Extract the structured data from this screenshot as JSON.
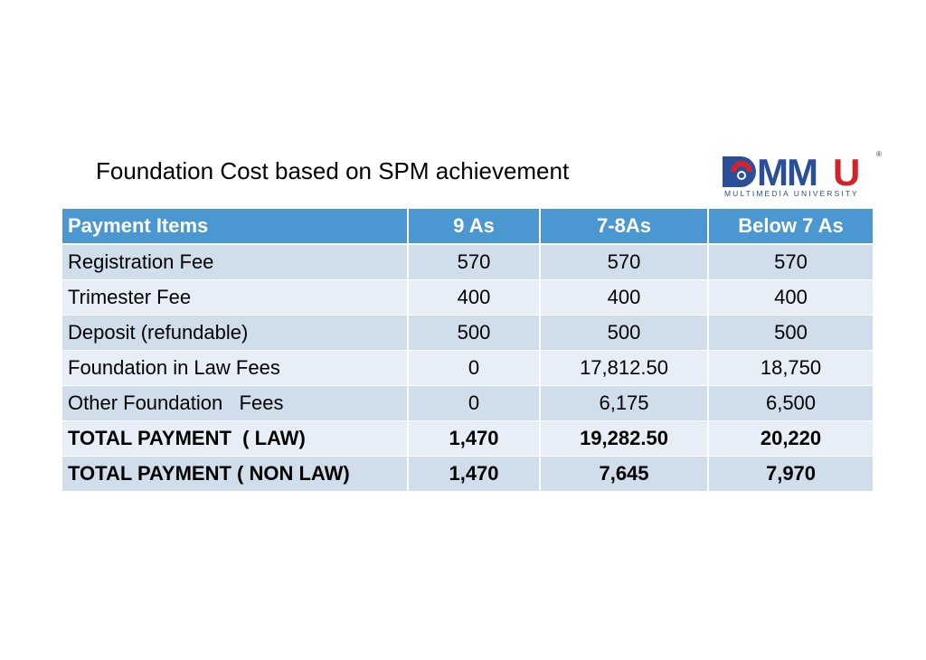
{
  "title": "Foundation Cost based on SPM achievement",
  "logo": {
    "text": "MMU",
    "subtitle": "MULTIMEDIA UNIVERSITY",
    "mark": "®",
    "colors": {
      "blue": "#2a4f9a",
      "red": "#d2232a"
    }
  },
  "table": {
    "headers": [
      "Payment Items",
      "9 As",
      "7-8As",
      "Below 7 As"
    ],
    "rows": [
      {
        "item": "Registration Fee",
        "c1": "570",
        "c2": "570",
        "c3": "570",
        "bold": false
      },
      {
        "item": "Trimester Fee",
        "c1": "400",
        "c2": "400",
        "c3": "400",
        "bold": false
      },
      {
        "item": "Deposit (refundable)",
        "c1": "500",
        "c2": "500",
        "c3": "500",
        "bold": false
      },
      {
        "item": "Foundation in Law Fees",
        "c1": "0",
        "c2": "17,812.50",
        "c3": "18,750",
        "bold": false
      },
      {
        "item": "Other Foundation   Fees",
        "c1": "0",
        "c2": "6,175",
        "c3": "6,500",
        "bold": false
      },
      {
        "item": "TOTAL PAYMENT  ( LAW)",
        "c1": "1,470",
        "c2": "19,282.50",
        "c3": "20,220",
        "bold": true
      },
      {
        "item": "TOTAL PAYMENT ( NON LAW)",
        "c1": "1,470",
        "c2": "7,645",
        "c3": "7,970",
        "bold": true
      }
    ],
    "colors": {
      "header": "#4a97d1",
      "row_dark": "#d0deec",
      "row_light": "#e8eef7"
    }
  }
}
